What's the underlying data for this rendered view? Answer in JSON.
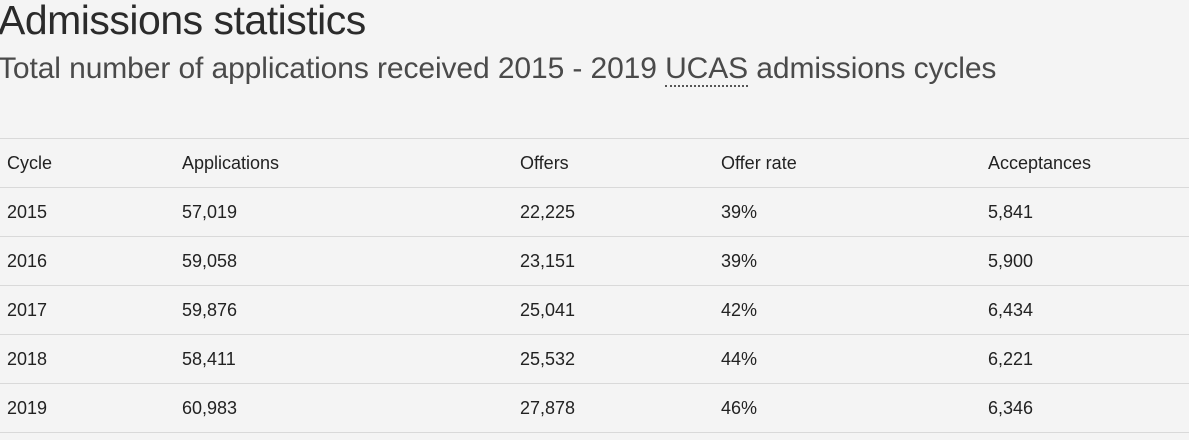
{
  "header": {
    "title": "Admissions statistics",
    "subtitle_prefix": "Total number of applications received 2015 - 2019 ",
    "subtitle_abbr": "UCAS",
    "subtitle_suffix": " admissions cycles"
  },
  "table": {
    "columns": [
      "Cycle",
      "Applications",
      "Offers",
      "Offer rate",
      "Acceptances"
    ],
    "rows": [
      [
        "2015",
        "57,019",
        "22,225",
        "39%",
        "5,841"
      ],
      [
        "2016",
        "59,058",
        "23,151",
        "39%",
        "5,900"
      ],
      [
        "2017",
        "59,876",
        "25,041",
        "42%",
        "6,434"
      ],
      [
        "2018",
        "58,411",
        "25,532",
        "44%",
        "6,221"
      ],
      [
        "2019",
        "60,983",
        "27,878",
        "46%",
        "6,346"
      ]
    ]
  }
}
